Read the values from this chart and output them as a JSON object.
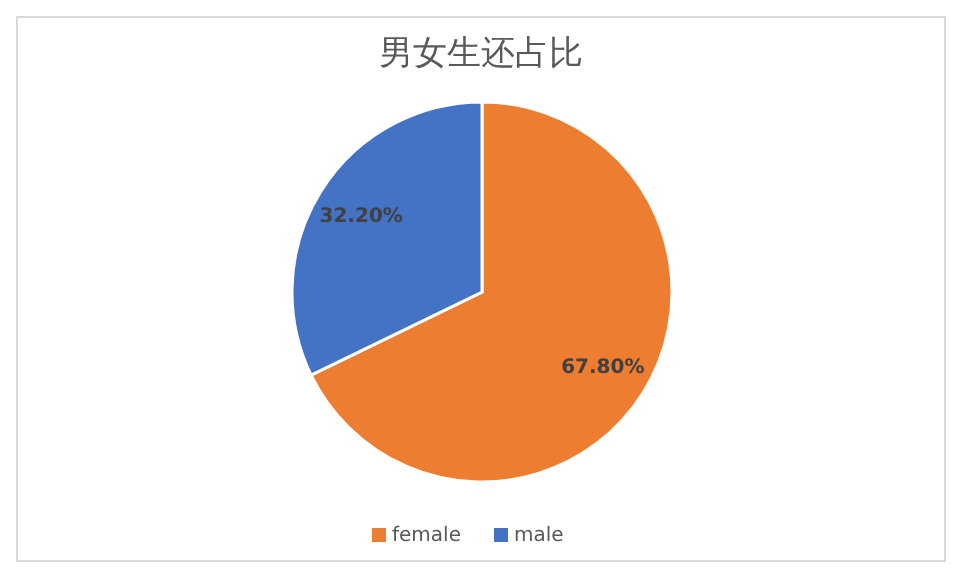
{
  "chart_data": {
    "type": "pie",
    "title": "男女生还占比",
    "categories": [
      "female",
      "male"
    ],
    "values": [
      67.8,
      32.2
    ],
    "colors": [
      "#ed7d31",
      "#4472c4"
    ],
    "value_labels": [
      "67.80%",
      "32.20%"
    ],
    "legend": "bottom"
  }
}
